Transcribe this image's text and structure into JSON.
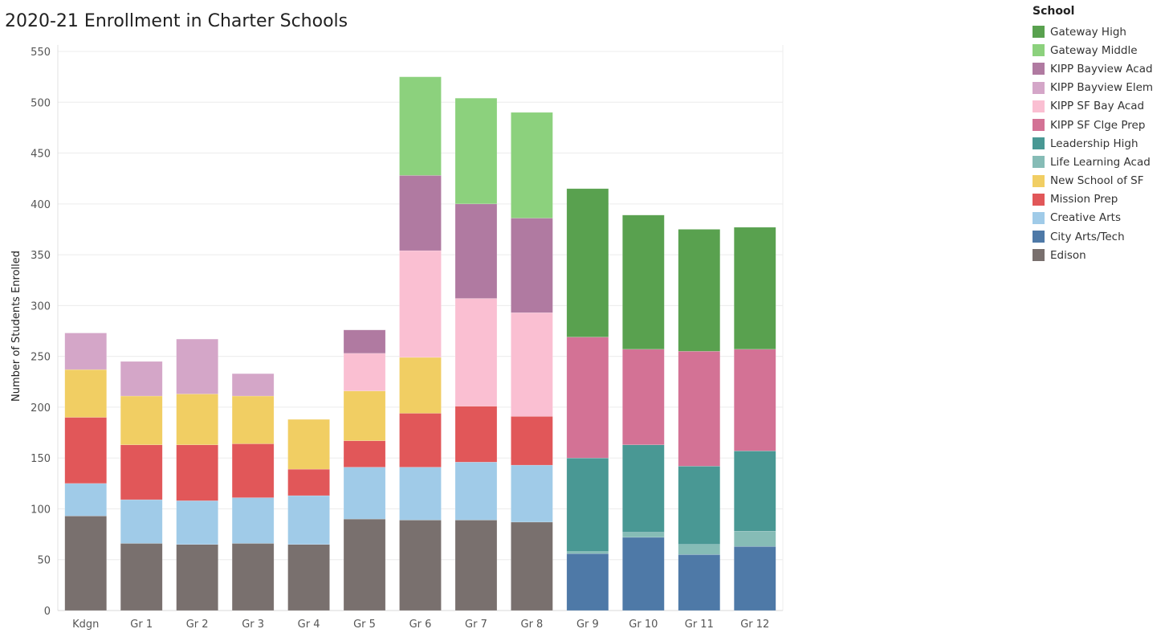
{
  "chart_data": {
    "type": "bar",
    "stacked": true,
    "title": "2020-21 Enrollment in Charter Schools",
    "ylabel": "Number of Students Enrolled",
    "xlabel": "",
    "ylim": [
      0,
      560
    ],
    "yticks": [
      0,
      50,
      100,
      150,
      200,
      250,
      300,
      350,
      400,
      450,
      500,
      550
    ],
    "grid": true,
    "legend_position": "right",
    "legend_title": "School",
    "categories": [
      "Kdgn",
      "Gr 1",
      "Gr 2",
      "Gr 3",
      "Gr 4",
      "Gr 5",
      "Gr 6",
      "Gr 7",
      "Gr 8",
      "Gr 9",
      "Gr 10",
      "Gr 11",
      "Gr 12"
    ],
    "series": [
      {
        "name": "Gateway High",
        "color": "#59a14f",
        "values": [
          0,
          0,
          0,
          0,
          0,
          0,
          0,
          0,
          0,
          146,
          132,
          120,
          120
        ]
      },
      {
        "name": "Gateway Middle",
        "color": "#8cd17d",
        "values": [
          0,
          0,
          0,
          0,
          0,
          0,
          97,
          104,
          104,
          0,
          0,
          0,
          0
        ]
      },
      {
        "name": "KIPP Bayview Acad",
        "color": "#b07aa1",
        "values": [
          0,
          0,
          0,
          0,
          0,
          23,
          74,
          93,
          93,
          0,
          0,
          0,
          0
        ]
      },
      {
        "name": "KIPP Bayview Elem",
        "color": "#d4a6c8",
        "values": [
          36,
          34,
          54,
          22,
          0,
          0,
          0,
          0,
          0,
          0,
          0,
          0,
          0
        ]
      },
      {
        "name": "KIPP SF Bay Acad",
        "color": "#fabfd2",
        "values": [
          0,
          0,
          0,
          0,
          0,
          37,
          105,
          106,
          102,
          0,
          0,
          0,
          0
        ]
      },
      {
        "name": "KIPP SF Clge Prep",
        "color": "#d37295",
        "values": [
          0,
          0,
          0,
          0,
          0,
          0,
          0,
          0,
          0,
          119,
          94,
          113,
          100
        ]
      },
      {
        "name": "Leadership High",
        "color": "#499894",
        "values": [
          0,
          0,
          0,
          0,
          0,
          0,
          0,
          0,
          0,
          92,
          86,
          77,
          79
        ]
      },
      {
        "name": "Life Learning Acad",
        "color": "#86bcb6",
        "values": [
          0,
          0,
          0,
          0,
          0,
          0,
          0,
          0,
          0,
          2,
          5,
          10,
          15
        ]
      },
      {
        "name": "New School of SF",
        "color": "#f1ce63",
        "values": [
          47,
          48,
          50,
          47,
          49,
          49,
          55,
          0,
          0,
          0,
          0,
          0,
          0
        ]
      },
      {
        "name": "Mission Prep",
        "color": "#e15759",
        "values": [
          65,
          54,
          55,
          53,
          26,
          26,
          53,
          55,
          48,
          0,
          0,
          0,
          0
        ]
      },
      {
        "name": "Creative Arts",
        "color": "#a0cbe8",
        "values": [
          32,
          43,
          43,
          45,
          48,
          51,
          52,
          57,
          56,
          0,
          0,
          0,
          0
        ]
      },
      {
        "name": "City Arts/Tech",
        "color": "#4e79a7",
        "values": [
          0,
          0,
          0,
          0,
          0,
          0,
          0,
          0,
          0,
          56,
          72,
          55,
          63
        ]
      },
      {
        "name": "Edison",
        "color": "#79706e",
        "values": [
          93,
          66,
          65,
          66,
          65,
          90,
          89,
          89,
          87,
          0,
          0,
          0,
          0
        ]
      }
    ]
  }
}
